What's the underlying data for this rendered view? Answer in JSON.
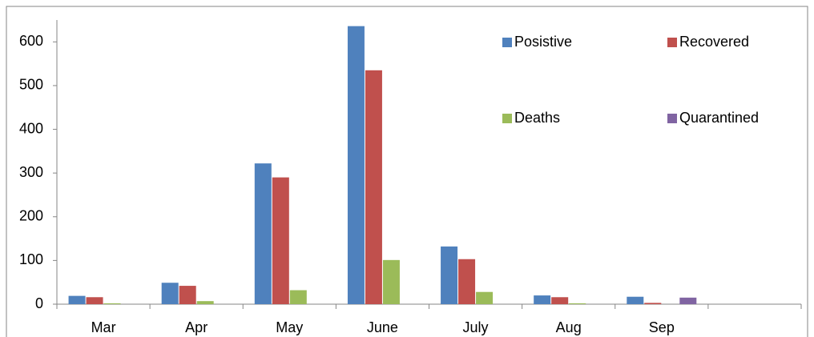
{
  "chart_data": {
    "type": "bar",
    "categories": [
      "Mar",
      "Apr",
      "May",
      "June",
      "July",
      "Aug",
      "Sep",
      null
    ],
    "series": [
      {
        "name": "Posistive",
        "color": "#4f81bd",
        "values": [
          19,
          49,
          322,
          636,
          132,
          20,
          17,
          null
        ]
      },
      {
        "name": "Recovered",
        "color": "#c0504d",
        "values": [
          16,
          42,
          290,
          535,
          103,
          16,
          3,
          null
        ]
      },
      {
        "name": "Deaths",
        "color": "#9bbb59",
        "values": [
          2,
          7,
          32,
          101,
          28,
          2,
          0,
          null
        ]
      },
      {
        "name": "Quarantined",
        "color": "#8064a2",
        "values": [
          0,
          0,
          0,
          0,
          0,
          0,
          15,
          null
        ]
      }
    ],
    "ylim": [
      0,
      650
    ],
    "yticks": [
      0,
      100,
      200,
      300,
      400,
      500,
      600
    ],
    "grid": false,
    "legend": "top-right"
  }
}
